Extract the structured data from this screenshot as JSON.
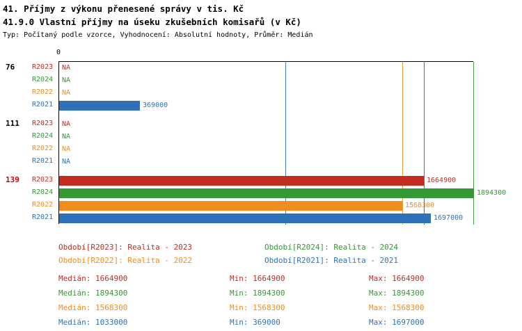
{
  "header": {
    "title1": "41. Příjmy z výkonu přenesené správy v tis. Kč",
    "title2": "41.9.0 Vlastní příjmy na úseku zkušebních komisařů (v Kč)",
    "subtitle": "Typ: Počítaný podle vzorce, Vyhodnocení: Absolutní hodnoty, Průměr: Medián"
  },
  "colors": {
    "R2023": "#c22d1f",
    "R2024": "#339933",
    "R2022": "#f08c1e",
    "R2021": "#2d72b8",
    "group_highlight": "#d40000",
    "axis": "#000000"
  },
  "chart_data": {
    "type": "bar",
    "orientation": "horizontal",
    "axis_origin_label": "0",
    "xlim": [
      0,
      1894300
    ],
    "na_label": "NA",
    "series_order": [
      "R2023",
      "R2024",
      "R2022",
      "R2021"
    ],
    "groups": [
      {
        "label": "76",
        "highlight": false,
        "rows": [
          {
            "series": "R2023",
            "value": null
          },
          {
            "series": "R2024",
            "value": null
          },
          {
            "series": "R2022",
            "value": null
          },
          {
            "series": "R2021",
            "value": 369000
          }
        ]
      },
      {
        "label": "111",
        "highlight": false,
        "rows": [
          {
            "series": "R2023",
            "value": null
          },
          {
            "series": "R2024",
            "value": null
          },
          {
            "series": "R2022",
            "value": null
          },
          {
            "series": "R2021",
            "value": null
          }
        ]
      },
      {
        "label": "139",
        "highlight": true,
        "rows": [
          {
            "series": "R2023",
            "value": 1664900
          },
          {
            "series": "R2024",
            "value": 1894300
          },
          {
            "series": "R2022",
            "value": 1568300
          },
          {
            "series": "R2021",
            "value": 1697000
          }
        ]
      }
    ],
    "median_lines": [
      {
        "series": "R2021",
        "value": 1033000
      },
      {
        "series": "R2022",
        "value": 1568300
      },
      {
        "series": "R2023",
        "value": 1664900
      },
      {
        "series": "R2024",
        "value": 1894300
      }
    ]
  },
  "legend": [
    {
      "series": "R2023",
      "text": "Období[R2023]: Realita - 2023"
    },
    {
      "series": "R2024",
      "text": "Období[R2024]: Realita - 2024"
    },
    {
      "series": "R2022",
      "text": "Období[R2022]: Realita - 2022"
    },
    {
      "series": "R2021",
      "text": "Období[R2021]: Realita - 2021"
    }
  ],
  "stats_labels": {
    "median": "Medián",
    "min": "Min",
    "max": "Max"
  },
  "stats": [
    {
      "series": "R2023",
      "median": 1664900,
      "min": 1664900,
      "max": 1664900
    },
    {
      "series": "R2024",
      "median": 1894300,
      "min": 1894300,
      "max": 1894300
    },
    {
      "series": "R2022",
      "median": 1568300,
      "min": 1568300,
      "max": 1568300
    },
    {
      "series": "R2021",
      "median": 1033000,
      "min": 369000,
      "max": 1697000
    }
  ]
}
